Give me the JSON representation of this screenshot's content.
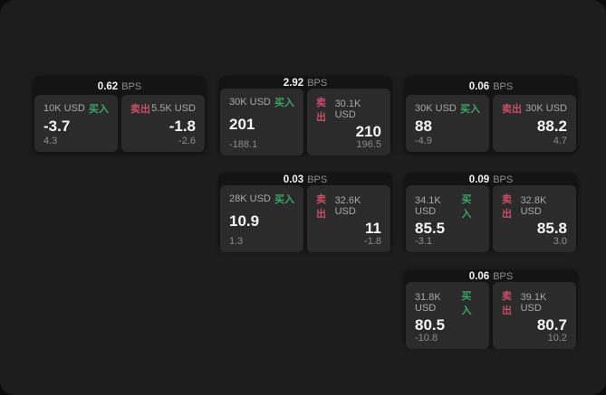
{
  "labels": {
    "buy": "买入",
    "sell": "卖出",
    "bps_unit": "BPS"
  },
  "colors": {
    "buy": "#3fa566",
    "sell": "#c74f68",
    "panel_background": "#1d1d1e",
    "card_background": "#141414",
    "tile_background": "#2b2b2b"
  },
  "cards": [
    {
      "grid": {
        "row": 1,
        "col": 1
      },
      "bps": "0.62",
      "buy": {
        "amount": "10K USD",
        "price": "-3.7",
        "sub": "4.3"
      },
      "sell": {
        "amount": "5.5K USD",
        "price": "-1.8",
        "sub": "-2.6"
      }
    },
    {
      "grid": {
        "row": 1,
        "col": 2
      },
      "bps": "2.92",
      "buy": {
        "amount": "30K USD",
        "price": "201",
        "sub": "-188.1"
      },
      "sell": {
        "amount": "30.1K USD",
        "price": "210",
        "sub": "196.5"
      }
    },
    {
      "grid": {
        "row": 1,
        "col": 3
      },
      "bps": "0.06",
      "buy": {
        "amount": "30K USD",
        "price": "88",
        "sub": "-4.9"
      },
      "sell": {
        "amount": "30K USD",
        "price": "88.2",
        "sub": "4.7"
      }
    },
    {
      "grid": {
        "row": 2,
        "col": 2
      },
      "bps": "0.03",
      "buy": {
        "amount": "28K USD",
        "price": "10.9",
        "sub": "1.3"
      },
      "sell": {
        "amount": "32.6K USD",
        "price": "11",
        "sub": "-1.8"
      }
    },
    {
      "grid": {
        "row": 2,
        "col": 3
      },
      "bps": "0.09",
      "buy": {
        "amount": "34.1K USD",
        "price": "85.5",
        "sub": "-3.1"
      },
      "sell": {
        "amount": "32.8K USD",
        "price": "85.8",
        "sub": "3.0"
      }
    },
    {
      "grid": {
        "row": 3,
        "col": 3
      },
      "bps": "0.06",
      "buy": {
        "amount": "31.8K USD",
        "price": "80.5",
        "sub": "-10.8"
      },
      "sell": {
        "amount": "39.1K USD",
        "price": "80.7",
        "sub": "10.2"
      }
    }
  ]
}
